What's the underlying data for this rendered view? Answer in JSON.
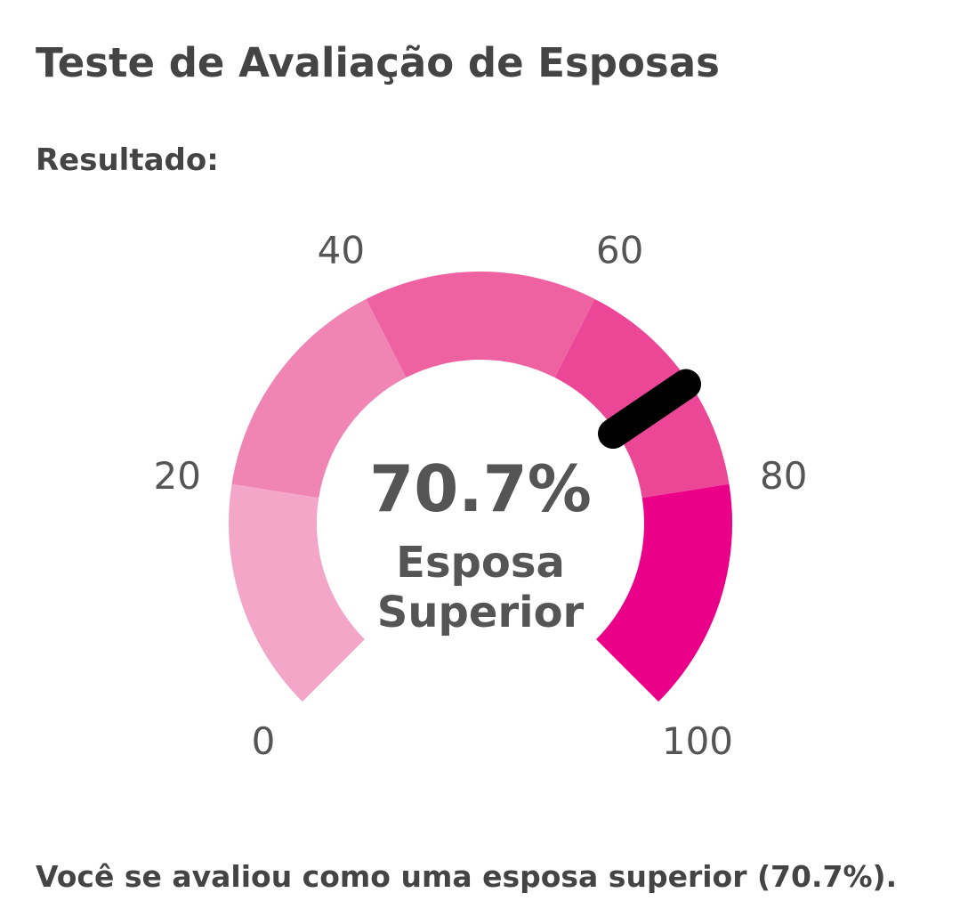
{
  "page": {
    "title": "Teste de Avaliação de Esposas",
    "subtitle": "Resultado:",
    "summary": "Você se avaliou como uma esposa superior (70.7%)."
  },
  "gauge": {
    "value": 70.7,
    "min": 0,
    "max": 100,
    "value_text": "70.7%",
    "label_line1": "Esposa",
    "label_line2": "Superior",
    "needle_color": "#000000",
    "segments": [
      {
        "from": 0,
        "to": 20,
        "color": "#F4A6C8"
      },
      {
        "from": 20,
        "to": 40,
        "color": "#F085B3"
      },
      {
        "from": 40,
        "to": 60,
        "color": "#EE62A2"
      },
      {
        "from": 60,
        "to": 80,
        "color": "#EC4797"
      },
      {
        "from": 80,
        "to": 100,
        "color": "#EA0088"
      }
    ],
    "ticks": [
      "0",
      "20",
      "40",
      "60",
      "80",
      "100"
    ]
  }
}
